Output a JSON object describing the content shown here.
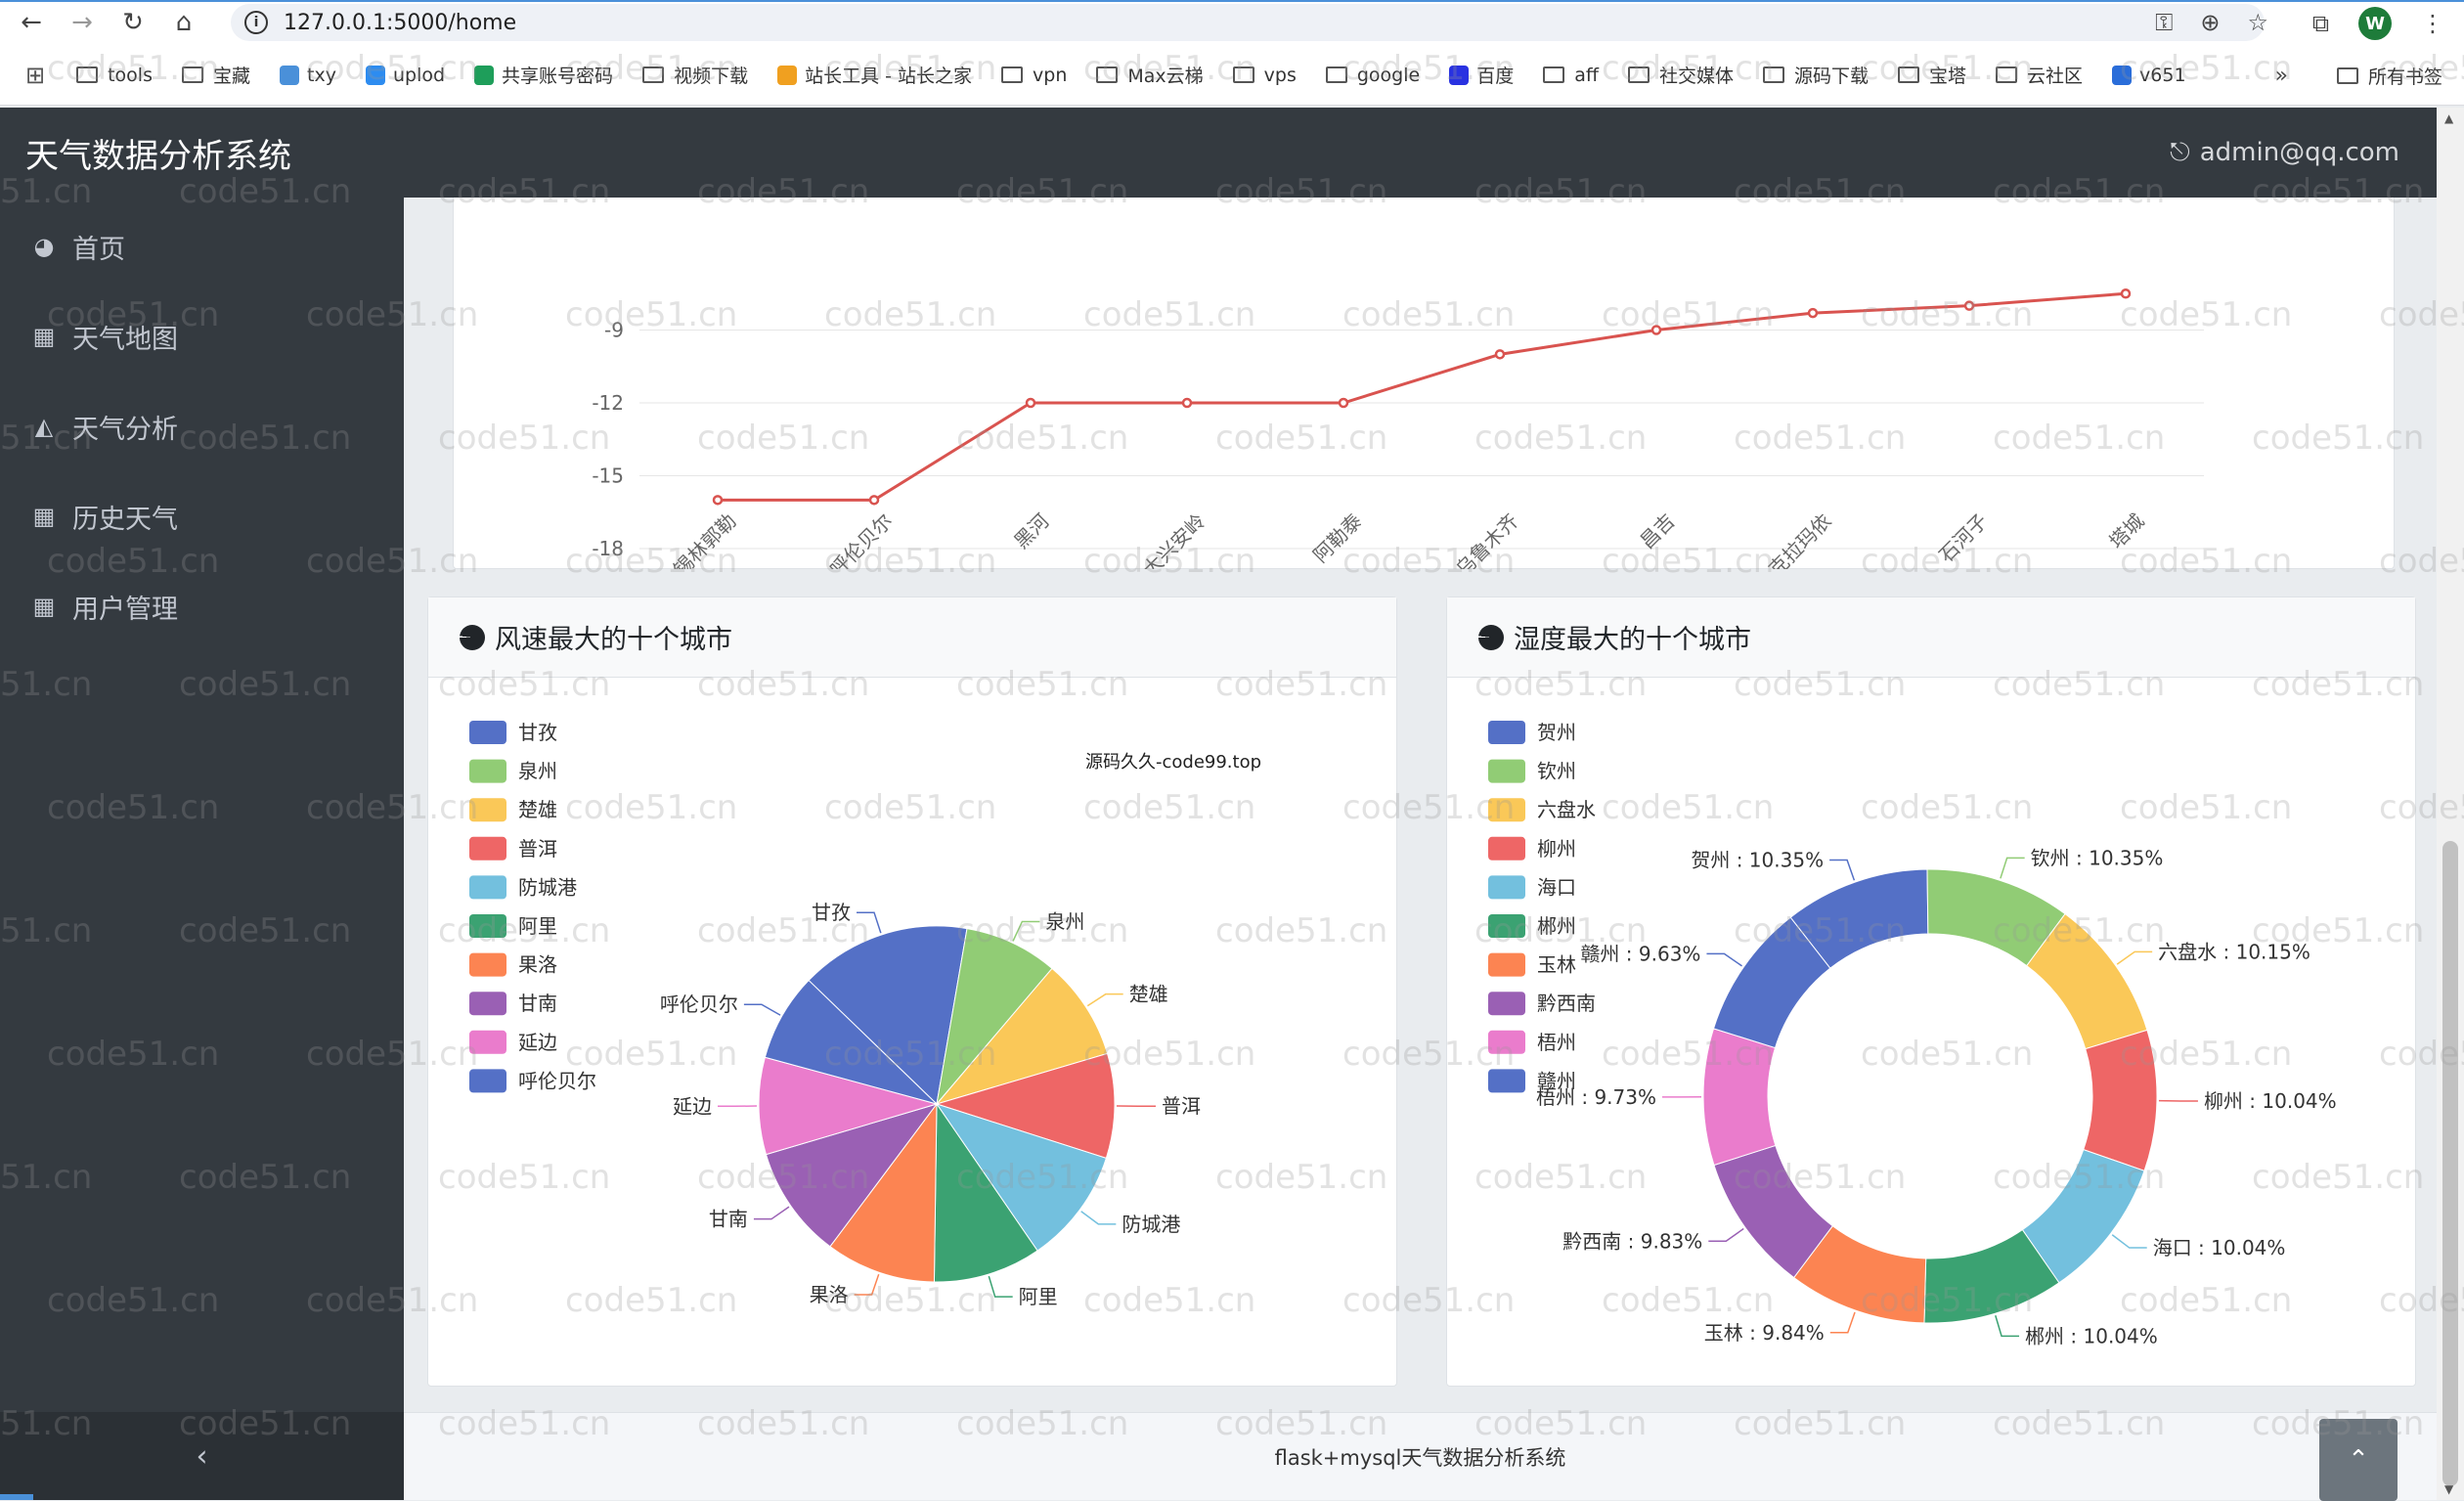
{
  "browser": {
    "url": "127.0.0.1:5000/home",
    "profile_initial": "W",
    "bookmarks": [
      {
        "label": "tools",
        "type": "folder"
      },
      {
        "label": "宝藏",
        "type": "folder"
      },
      {
        "label": "txy",
        "type": "cloud"
      },
      {
        "label": "uplod",
        "type": "cloud2"
      },
      {
        "label": "共享账号密码",
        "type": "sheet"
      },
      {
        "label": "视频下载",
        "type": "folder"
      },
      {
        "label": "站长工具 - 站长之家",
        "type": "site"
      },
      {
        "label": "vpn",
        "type": "folder"
      },
      {
        "label": "Max云梯",
        "type": "folder"
      },
      {
        "label": "vps",
        "type": "folder"
      },
      {
        "label": "google",
        "type": "folder"
      },
      {
        "label": "百度",
        "type": "baidu"
      },
      {
        "label": "aff",
        "type": "folder"
      },
      {
        "label": "社交媒体",
        "type": "folder"
      },
      {
        "label": "源码下载",
        "type": "folder"
      },
      {
        "label": "宝塔",
        "type": "folder"
      },
      {
        "label": "云社区",
        "type": "folder"
      },
      {
        "label": "v651",
        "type": "site2"
      }
    ],
    "all_bookmarks": "所有书签"
  },
  "app": {
    "title": "天气数据分析系统",
    "user": "admin@qq.com",
    "footer": "flask+mysql天气数据分析系统"
  },
  "sidebar": {
    "items": [
      {
        "label": "首页",
        "icon": "dashboard-icon"
      },
      {
        "label": "天气地图",
        "icon": "table-icon"
      },
      {
        "label": "天气分析",
        "icon": "area-chart-icon"
      },
      {
        "label": "历史天气",
        "icon": "table-icon"
      },
      {
        "label": "用户管理",
        "icon": "table-icon"
      }
    ]
  },
  "watermark": "code51.cn",
  "chart_data": [
    {
      "type": "line",
      "categories": [
        "锡林郭勒",
        "呼伦贝尔",
        "黑河",
        "大兴安岭",
        "阿勒泰",
        "乌鲁木齐",
        "昌吉",
        "克拉玛依",
        "石河子",
        "塔城"
      ],
      "values": [
        -16,
        -16,
        -12,
        -12,
        -12,
        -10,
        -9,
        -8.3,
        -8,
        -7.5
      ],
      "yticks": [
        -9,
        -12,
        -15,
        -18
      ],
      "color": "#d9534f"
    },
    {
      "type": "pie",
      "title": "风速最大的十个城市",
      "annotation": "源码久久-code99.top",
      "legend": [
        "甘孜",
        "泉州",
        "楚雄",
        "普洱",
        "防城港",
        "阿里",
        "果洛",
        "甘南",
        "延边",
        "呼伦贝尔"
      ],
      "values": [
        15.5,
        8.5,
        9.2,
        9.5,
        10.5,
        9.8,
        10.0,
        10.2,
        8.8,
        8.0
      ],
      "colors": [
        "#5470c6",
        "#91cc75",
        "#fac858",
        "#ee6666",
        "#73c0de",
        "#3ba272",
        "#fc8452",
        "#9a60b4",
        "#ea7ccc",
        "#5470c6"
      ]
    },
    {
      "type": "pie",
      "title": "湿度最大的十个城市",
      "legend": [
        "贺州",
        "钦州",
        "六盘水",
        "柳州",
        "海口",
        "郴州",
        "玉林",
        "黔西南",
        "梧州",
        "赣州"
      ],
      "values": [
        10.35,
        10.35,
        10.15,
        10.04,
        10.04,
        10.04,
        9.84,
        9.83,
        9.73,
        9.63
      ],
      "slice_labels": [
        "贺州 : 10.35%",
        "钦州 : 10.35%",
        "六盘水 : 10.15%",
        "柳州 : 10.04%",
        "海口 : 10.04%",
        "郴州 : 10.04%",
        "玉林 : 9.84%",
        "黔西南 : 9.83%",
        "梧州 : 9.73%",
        "赣州 : 9.63%"
      ],
      "colors": [
        "#5470c6",
        "#91cc75",
        "#fac858",
        "#ee6666",
        "#73c0de",
        "#3ba272",
        "#fc8452",
        "#9a60b4",
        "#ea7ccc",
        "#5470c6"
      ]
    }
  ]
}
